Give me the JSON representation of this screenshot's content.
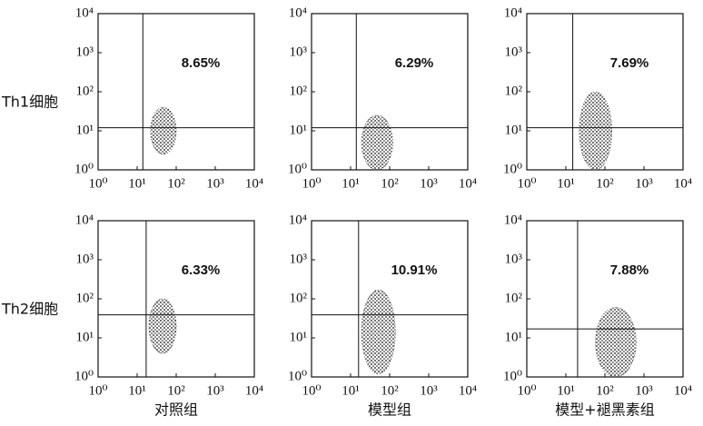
{
  "chart_data": [
    {
      "type": "scatter",
      "ylabel": "Th1细胞",
      "annotation": "8.65%",
      "xscale": "log",
      "yscale": "log",
      "xlim": [
        1,
        10000
      ],
      "ylim": [
        1,
        10000
      ],
      "xticks": [
        {
          "value": 1,
          "label": "10⁰"
        },
        {
          "value": 10,
          "label": "10¹"
        },
        {
          "value": 100,
          "label": "10²"
        },
        {
          "value": 1000,
          "label": "10³"
        },
        {
          "value": 10000,
          "label": "10⁴"
        }
      ],
      "yticks": [
        {
          "value": 1,
          "label": "10⁰"
        },
        {
          "value": 10,
          "label": "10¹"
        },
        {
          "value": 100,
          "label": "10²"
        },
        {
          "value": 1000,
          "label": "10³"
        },
        {
          "value": 10000,
          "label": "10⁴"
        }
      ],
      "gate": {
        "x": 14,
        "y": 12
      },
      "cluster": {
        "x": [
          22,
          100
        ],
        "y": [
          2.5,
          40
        ]
      },
      "color": "#111111"
    },
    {
      "type": "scatter",
      "annotation": "6.29%",
      "xscale": "log",
      "yscale": "log",
      "xlim": [
        1,
        10000
      ],
      "ylim": [
        1,
        10000
      ],
      "xticks": [
        {
          "value": 1,
          "label": "10⁰"
        },
        {
          "value": 10,
          "label": "10¹"
        },
        {
          "value": 100,
          "label": "10²"
        },
        {
          "value": 1000,
          "label": "10³"
        },
        {
          "value": 10000,
          "label": "10⁴"
        }
      ],
      "yticks": [
        {
          "value": 1,
          "label": "10⁰"
        },
        {
          "value": 10,
          "label": "10¹"
        },
        {
          "value": 100,
          "label": "10²"
        },
        {
          "value": 1000,
          "label": "10³"
        },
        {
          "value": 10000,
          "label": "10⁴"
        }
      ],
      "gate": {
        "x": 14,
        "y": 12
      },
      "cluster": {
        "x": [
          19,
          120
        ],
        "y": [
          1,
          25
        ]
      },
      "color": "#111111"
    },
    {
      "type": "scatter",
      "annotation": "7.69%",
      "xscale": "log",
      "yscale": "log",
      "xlim": [
        1,
        10000
      ],
      "ylim": [
        1,
        10000
      ],
      "xticks": [
        {
          "value": 1,
          "label": "10⁰"
        },
        {
          "value": 10,
          "label": "10¹"
        },
        {
          "value": 100,
          "label": "10²"
        },
        {
          "value": 1000,
          "label": "10³"
        },
        {
          "value": 10000,
          "label": "10⁴"
        }
      ],
      "yticks": [
        {
          "value": 1,
          "label": "10⁰"
        },
        {
          "value": 10,
          "label": "10¹"
        },
        {
          "value": 100,
          "label": "10²"
        },
        {
          "value": 1000,
          "label": "10³"
        },
        {
          "value": 10000,
          "label": "10⁴"
        }
      ],
      "gate": {
        "x": 15,
        "y": 12
      },
      "cluster": {
        "x": [
          22,
          150
        ],
        "y": [
          1,
          100
        ]
      },
      "color": "#111111"
    },
    {
      "type": "scatter",
      "ylabel": "Th2细胞",
      "xlabel": "对照组",
      "annotation": "6.33%",
      "xscale": "log",
      "yscale": "log",
      "xlim": [
        1,
        10000
      ],
      "ylim": [
        1,
        10000
      ],
      "xticks": [
        {
          "value": 1,
          "label": "10⁰"
        },
        {
          "value": 10,
          "label": "10¹"
        },
        {
          "value": 100,
          "label": "10²"
        },
        {
          "value": 1000,
          "label": "10³"
        },
        {
          "value": 10000,
          "label": "10⁴"
        }
      ],
      "yticks": [
        {
          "value": 1,
          "label": "10⁰"
        },
        {
          "value": 10,
          "label": "10¹"
        },
        {
          "value": 100,
          "label": "10²"
        },
        {
          "value": 1000,
          "label": "10³"
        },
        {
          "value": 10000,
          "label": "10⁴"
        }
      ],
      "gate": {
        "x": 17,
        "y": 39
      },
      "cluster": {
        "x": [
          20,
          100
        ],
        "y": [
          4,
          100
        ]
      },
      "color": "#111111"
    },
    {
      "type": "scatter",
      "xlabel": "模型组",
      "annotation": "10.91%",
      "xscale": "log",
      "yscale": "log",
      "xlim": [
        1,
        10000
      ],
      "ylim": [
        1,
        10000
      ],
      "xticks": [
        {
          "value": 1,
          "label": "10⁰"
        },
        {
          "value": 10,
          "label": "10¹"
        },
        {
          "value": 100,
          "label": "10²"
        },
        {
          "value": 1000,
          "label": "10³"
        },
        {
          "value": 10000,
          "label": "10⁴"
        }
      ],
      "yticks": [
        {
          "value": 1,
          "label": "10⁰"
        },
        {
          "value": 10,
          "label": "10¹"
        },
        {
          "value": 100,
          "label": "10²"
        },
        {
          "value": 1000,
          "label": "10³"
        },
        {
          "value": 10000,
          "label": "10⁴"
        }
      ],
      "gate": {
        "x": 16,
        "y": 39
      },
      "cluster": {
        "x": [
          19,
          140
        ],
        "y": [
          1.2,
          170
        ]
      },
      "color": "#111111"
    },
    {
      "type": "scatter",
      "xlabel": "模型+褪黑素组",
      "annotation": "7.88%",
      "xscale": "log",
      "yscale": "log",
      "xlim": [
        1,
        10000
      ],
      "ylim": [
        1,
        10000
      ],
      "xticks": [
        {
          "value": 1,
          "label": "10⁰"
        },
        {
          "value": 10,
          "label": "10¹"
        },
        {
          "value": 100,
          "label": "10²"
        },
        {
          "value": 1000,
          "label": "10³"
        },
        {
          "value": 10000,
          "label": "10⁴"
        }
      ],
      "yticks": [
        {
          "value": 1,
          "label": "10⁰"
        },
        {
          "value": 10,
          "label": "10¹"
        },
        {
          "value": 100,
          "label": "10²"
        },
        {
          "value": 1000,
          "label": "10³"
        },
        {
          "value": 10000,
          "label": "10⁴"
        }
      ],
      "gate": {
        "x": 20,
        "y": 17
      },
      "cluster": {
        "x": [
          57,
          630
        ],
        "y": [
          1,
          60
        ]
      },
      "color": "#111111"
    }
  ]
}
